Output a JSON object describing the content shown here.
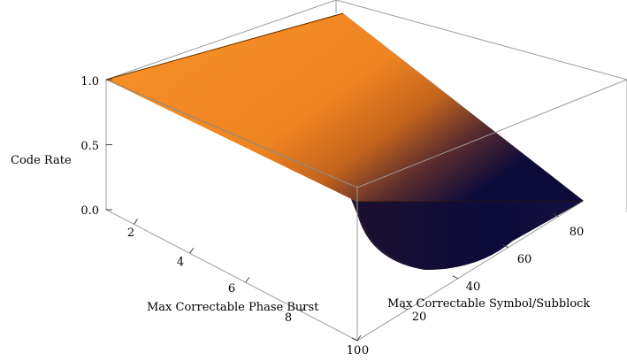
{
  "chart_data": {
    "type": "surface3d",
    "title": "",
    "xlabel": "Max Correctable Phase Burst",
    "ylabel": "Max Correctable Symbol/Subblock",
    "zlabel": "Code Rate",
    "x_range": [
      1,
      10
    ],
    "y_range": [
      0,
      90
    ],
    "z_range": [
      0,
      1
    ],
    "x_ticks": [
      {
        "value": 2,
        "label": "2"
      },
      {
        "value": 4,
        "label": "4"
      },
      {
        "value": 6,
        "label": "6"
      },
      {
        "value": 8,
        "label": "8"
      },
      {
        "value": 10,
        "label": "10"
      }
    ],
    "y_ticks": [
      {
        "value": 0,
        "label": "0"
      },
      {
        "value": 20,
        "label": "20"
      },
      {
        "value": 40,
        "label": "40"
      },
      {
        "value": 60,
        "label": "60"
      },
      {
        "value": 80,
        "label": "80"
      }
    ],
    "z_ticks": [
      {
        "value": 0,
        "label": "0.0"
      },
      {
        "value": 0.5,
        "label": "0.5"
      },
      {
        "value": 1,
        "label": "1.0"
      }
    ],
    "colors": {
      "high": "#f7922a",
      "mid": "#e8791a",
      "low": "#0d0b3a",
      "edge": "#3a2200",
      "box": "#9a9a9a"
    },
    "grid": false
  }
}
